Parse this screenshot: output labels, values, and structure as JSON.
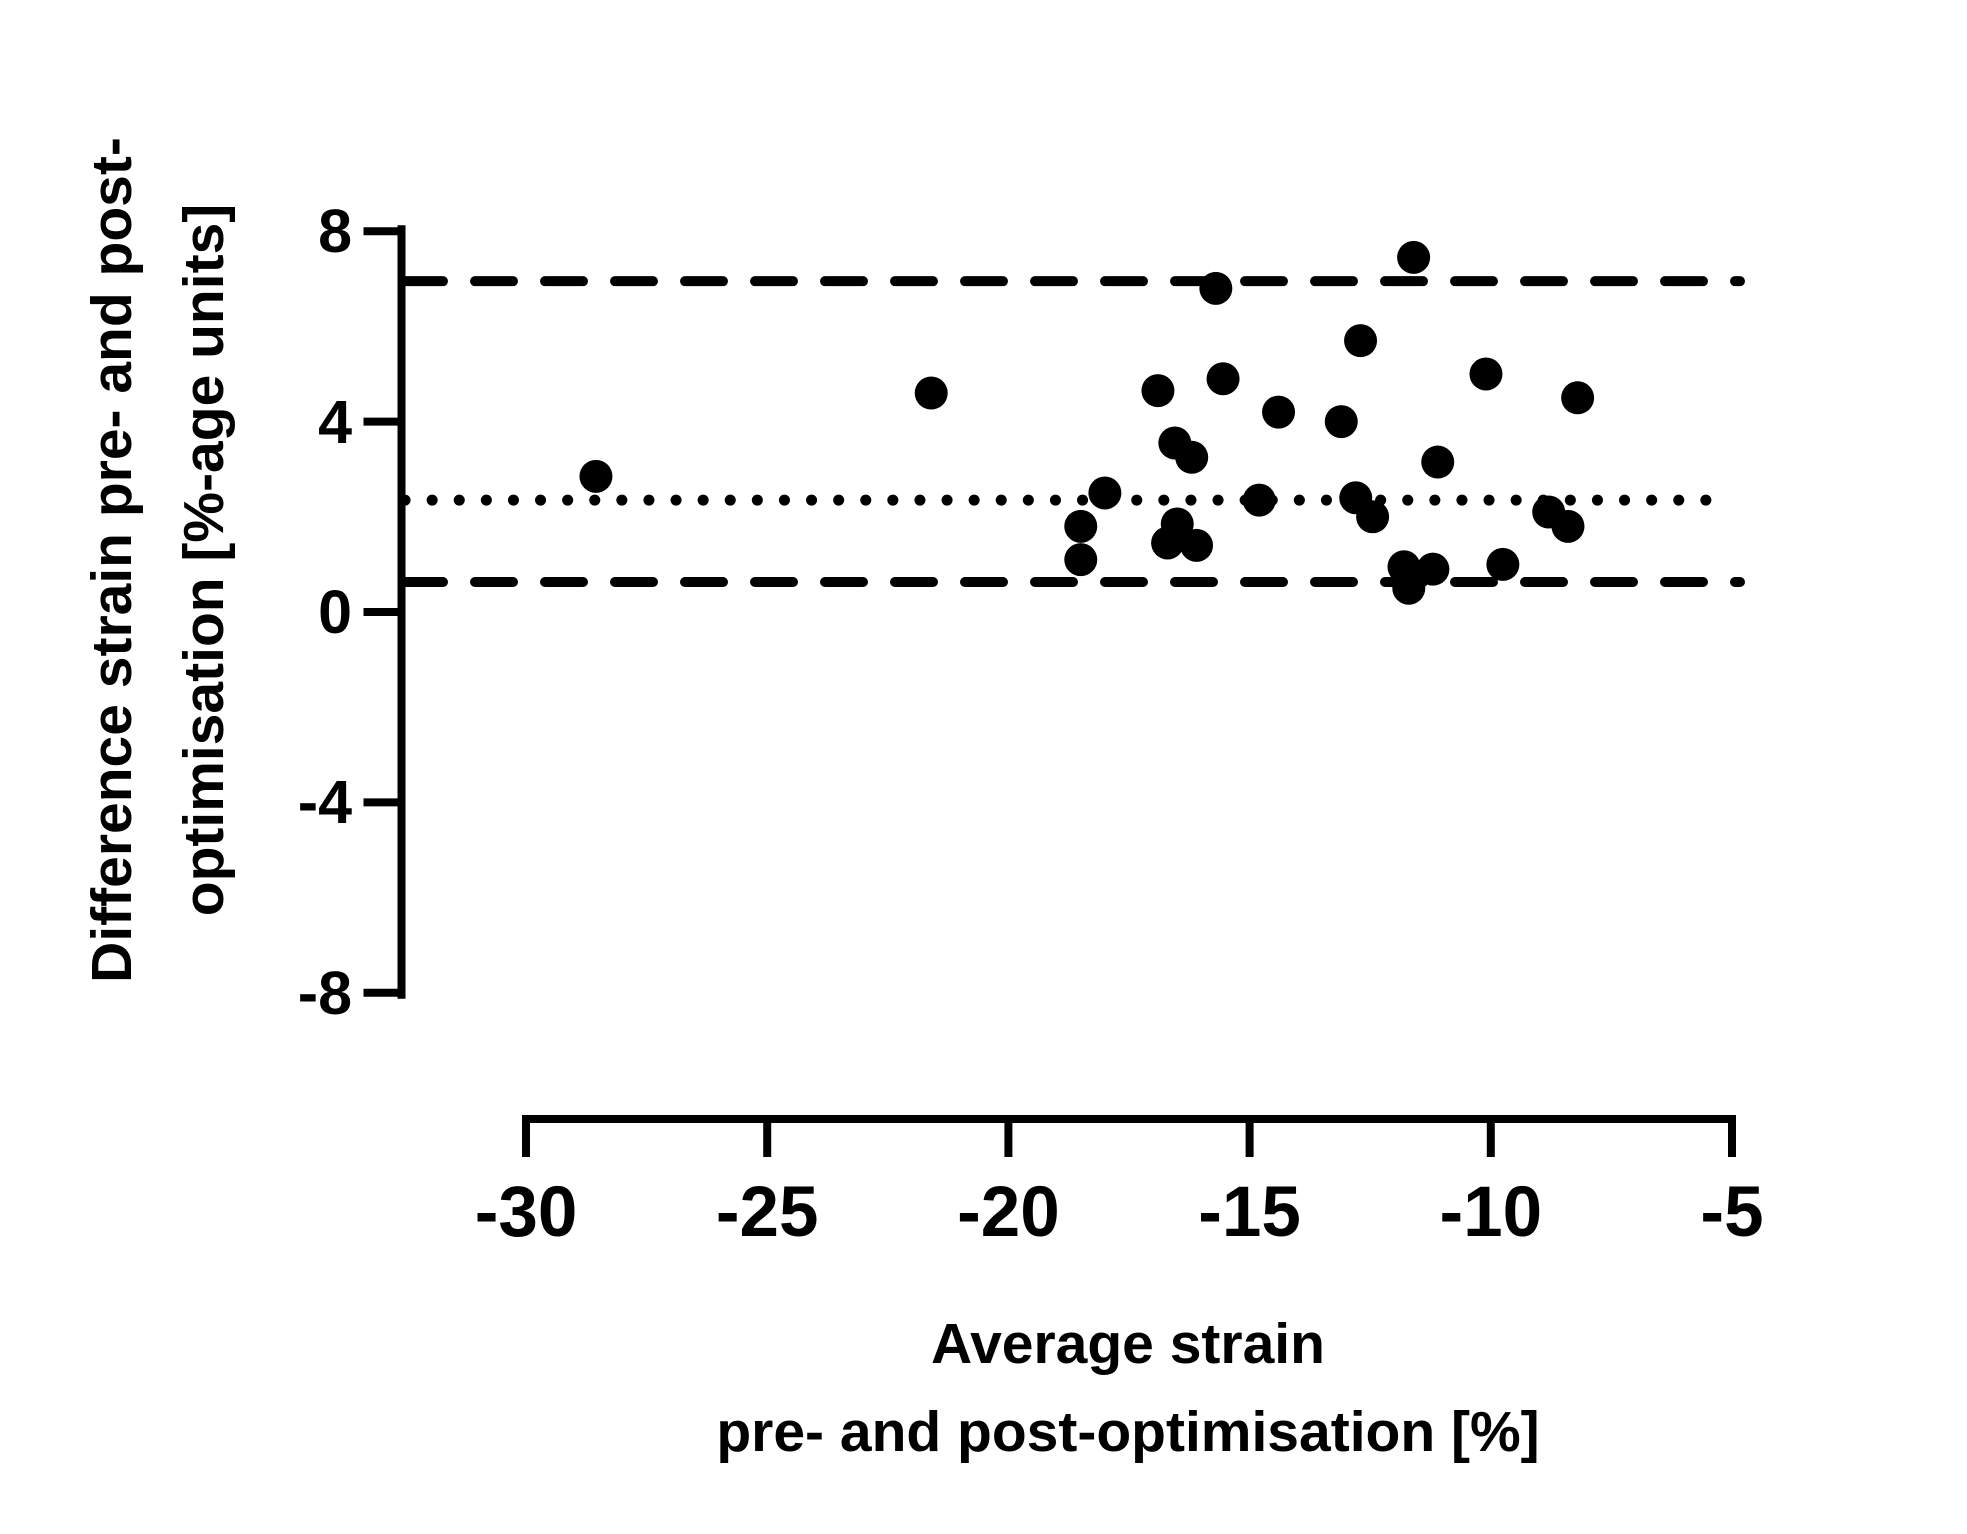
{
  "figure": {
    "background": "#ffffff",
    "ink": "#000000"
  },
  "chart_data": {
    "type": "scatter",
    "title": "",
    "xlabel_lines": [
      "Average strain",
      "pre- and post-optimisation [%]"
    ],
    "ylabel_lines": [
      "Difference strain pre- and post-",
      "optimisation [%-age units]"
    ],
    "x_axis": {
      "min": -30,
      "max": -5,
      "ticks": [
        -30,
        -25,
        -20,
        -15,
        -10,
        -5
      ],
      "tick_labels": [
        "-30",
        "-25",
        "-20",
        "-15",
        "-10",
        "-5"
      ]
    },
    "y_axis": {
      "min": -8,
      "max": 8,
      "ticks": [
        8,
        4,
        0,
        -4,
        -8
      ],
      "tick_labels": [
        "8",
        "4",
        "0",
        "-4",
        "-8"
      ]
    },
    "reference_lines": {
      "upper_limit": {
        "value": 6.95,
        "style": "dashed"
      },
      "mean": {
        "value": 2.35,
        "style": "dotted"
      },
      "lower_limit": {
        "value": 0.63,
        "style": "dashed"
      }
    },
    "grid": "off",
    "legend": "none",
    "marker": {
      "shape": "circle",
      "color": "#000000",
      "radius_px": 16.5
    },
    "points": [
      [
        -28.55,
        2.85
      ],
      [
        -21.6,
        4.6
      ],
      [
        -18.5,
        1.8
      ],
      [
        -18.5,
        1.1
      ],
      [
        -18.0,
        2.5
      ],
      [
        -16.9,
        4.65
      ],
      [
        -16.55,
        3.55
      ],
      [
        -16.2,
        3.25
      ],
      [
        -16.5,
        1.85
      ],
      [
        -16.7,
        1.45
      ],
      [
        -16.1,
        1.4
      ],
      [
        -15.7,
        6.8
      ],
      [
        -15.55,
        4.9
      ],
      [
        -14.8,
        2.35
      ],
      [
        -14.4,
        4.2
      ],
      [
        -13.1,
        4.0
      ],
      [
        -12.7,
        5.7
      ],
      [
        -12.8,
        2.4
      ],
      [
        -12.45,
        2.0
      ],
      [
        -11.6,
        7.45
      ],
      [
        -11.1,
        3.15
      ],
      [
        -11.8,
        0.95
      ],
      [
        -11.2,
        0.9
      ],
      [
        -11.7,
        0.5
      ],
      [
        -10.1,
        5.0
      ],
      [
        -9.75,
        1.0
      ],
      [
        -8.8,
        2.1
      ],
      [
        -8.4,
        1.8
      ],
      [
        -8.2,
        4.5
      ]
    ]
  }
}
